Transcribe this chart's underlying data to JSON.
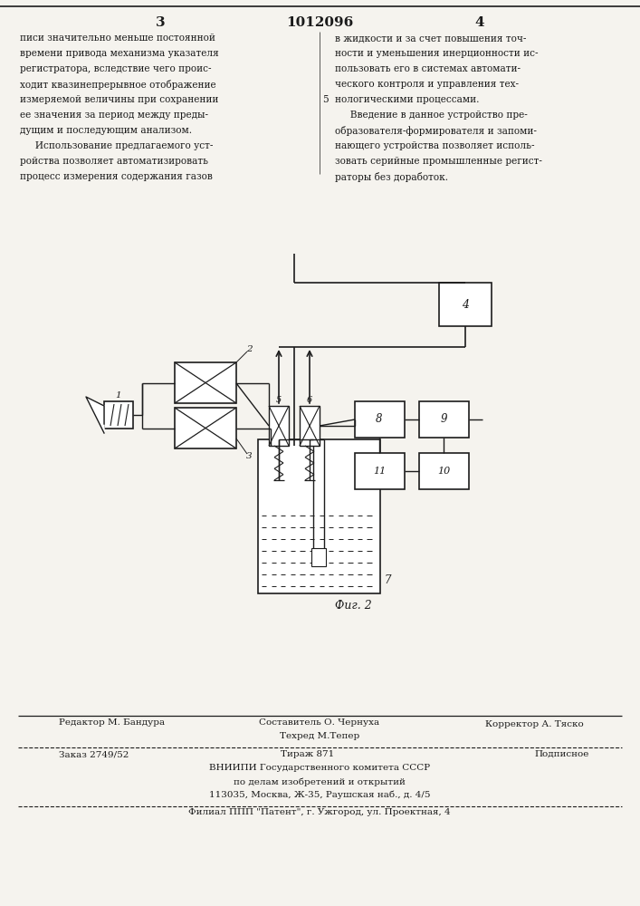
{
  "bg_color": "#f5f3ee",
  "text_color": "#1a1a1a",
  "page_num_left": "3",
  "page_num_center": "1012096",
  "page_num_right": "4",
  "col_left": [
    "писи значительно меньше постоянной",
    "времени привода механизма указателя",
    "регистратора, вследствие чего проис-",
    "ходит квазинепрерывное отображение",
    "измеряемой величины при сохранении",
    "ее значения за период между преды-",
    "дущим и последующим анализом.",
    "     Использование предлагаемого уст-",
    "ройства позволяет автоматизировать",
    "процесс измерения содержания газов"
  ],
  "col_right_line5_marker": "5",
  "col_right": [
    "в жидкости и за счет повышения точ-",
    "ности и уменьшения инерционности ис-",
    "пользовать его в системах автомати-",
    "ческого контроля и управления тех-",
    "нологическими процессами.",
    "     Введение в данное устройство пре-",
    "образователя-формирователя и запоми-",
    "нающего устройства позволяет исполь-",
    "зовать серийные промышленные регист-",
    "раторы без доработок."
  ],
  "fig_label": "Фиг. 2",
  "footer_r0c0": "Редактор М. Бандура",
  "footer_r0c1a": "Составитель О. Чернуха",
  "footer_r0c1b": "Техред М.Тепер",
  "footer_r0c2": "Корректор А. Тяско",
  "footer_r1c0": "Заказ 2749/52",
  "footer_r1c1": "Тираж 871",
  "footer_r1c2": "Подписное",
  "footer_r2": "ВНИИПИ Государственного комитета СССР",
  "footer_r3": "по делам изобретений и открытий",
  "footer_r4": "113035, Москва, Ж-35, Раушская наб., д. 4/5",
  "footer_r5": "Филиал ППП \"Патент\", г. Ужгород, ул. Проектная, 4"
}
